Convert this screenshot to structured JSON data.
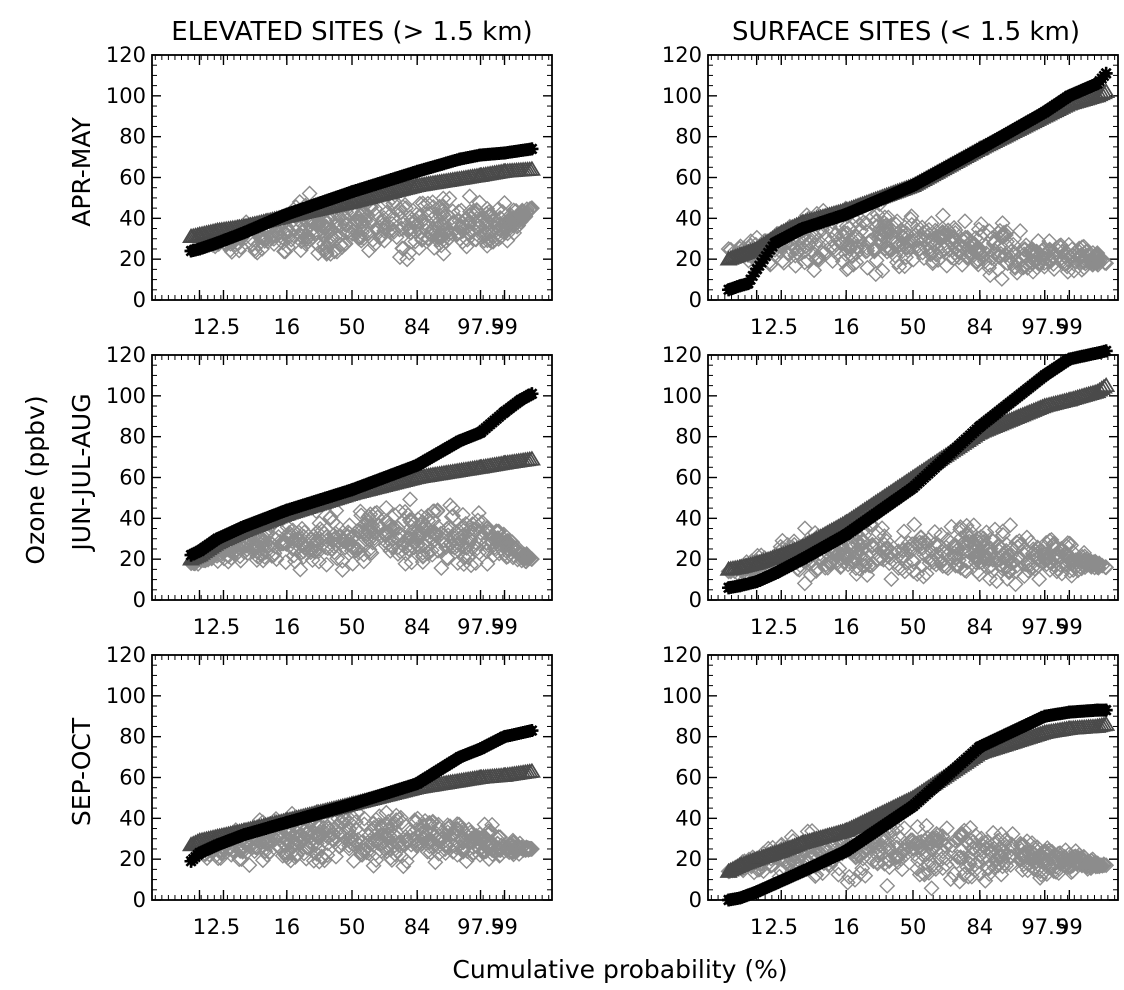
{
  "figure": {
    "column_titles": [
      "ELEVATED SITES (> 1.5 km)",
      "SURFACE SITES (< 1.5 km)"
    ],
    "row_labels": [
      "APR-MAY",
      "JUN-JUL-AUG",
      "SEP-OCT"
    ],
    "ylabel": "Ozone (ppbv)",
    "xlabel": "Cumulative probability (%)",
    "x_tick_labels": [
      "1",
      "2.5",
      "16",
      "50",
      "84",
      "97.5",
      "99"
    ],
    "y_tick_labels": [
      "0",
      "20",
      "40",
      "60",
      "80",
      "100",
      "120"
    ]
  },
  "colors": {
    "asterisk": "#000000",
    "triangle": "#4a4a4a",
    "diamond": "#8c8c8c",
    "axis": "#000000"
  },
  "chart_data": [
    {
      "type": "scatter",
      "x_scale": "probability",
      "ylim": [
        0,
        120
      ],
      "x_ticks": [
        1,
        2.5,
        16,
        50,
        84,
        97.5,
        99
      ],
      "series": [
        {
          "marker": "asterisk",
          "x": [
            0.7,
            1,
            2,
            5,
            16,
            50,
            84,
            95,
            97.5,
            99,
            99.7
          ],
          "y": [
            24,
            25,
            28,
            33,
            42,
            53,
            63,
            69,
            71,
            72,
            74
          ]
        },
        {
          "marker": "triangle",
          "x": [
            0.7,
            1,
            2,
            5,
            16,
            50,
            84,
            97.5,
            99,
            99.7
          ],
          "y": [
            31,
            32,
            34,
            36,
            41,
            48,
            56,
            61,
            63,
            64
          ]
        },
        {
          "marker": "diamond",
          "x": [
            1,
            2.5,
            5,
            16,
            50,
            84,
            97.5,
            99,
            99.7
          ],
          "y_center": [
            28,
            30,
            32,
            34,
            36,
            37,
            36,
            35,
            45
          ],
          "y_spread": [
            3,
            5,
            7,
            10,
            12,
            12,
            10,
            8,
            0
          ]
        }
      ]
    },
    {
      "type": "scatter",
      "x_scale": "probability",
      "ylim": [
        0,
        120
      ],
      "x_ticks": [
        1,
        2.5,
        16,
        50,
        84,
        97.5,
        99
      ],
      "series": [
        {
          "marker": "asterisk",
          "x": [
            0.3,
            0.5,
            0.7,
            1,
            2,
            5,
            16,
            50,
            84,
            97.5,
            99,
            99.7,
            99.8
          ],
          "y": [
            5,
            7,
            8,
            15,
            28,
            35,
            42,
            56,
            74,
            92,
            100,
            106,
            111
          ]
        },
        {
          "marker": "triangle",
          "x": [
            0.3,
            0.5,
            1,
            2.5,
            5,
            16,
            50,
            84,
            97.5,
            99,
            99.7,
            99.8
          ],
          "y": [
            20,
            22,
            25,
            33,
            38,
            44,
            56,
            74,
            90,
            96,
            100,
            102
          ]
        },
        {
          "marker": "diamond",
          "x": [
            0.3,
            0.7,
            1,
            2.5,
            5,
            16,
            50,
            84,
            97.5,
            99,
            99.7,
            99.8
          ],
          "y_center": [
            25,
            22,
            24,
            26,
            28,
            29,
            29,
            25,
            22,
            21,
            19,
            18
          ],
          "y_spread": [
            0,
            4,
            6,
            8,
            10,
            12,
            12,
            10,
            8,
            6,
            3,
            0
          ]
        }
      ]
    },
    {
      "type": "scatter",
      "x_scale": "probability",
      "ylim": [
        0,
        120
      ],
      "x_ticks": [
        1,
        2.5,
        16,
        50,
        84,
        97.5,
        99
      ],
      "series": [
        {
          "marker": "asterisk",
          "x": [
            0.7,
            1,
            2,
            5,
            16,
            50,
            84,
            95,
            97.5,
            99,
            99.5,
            99.7
          ],
          "y": [
            22,
            24,
            30,
            36,
            44,
            54,
            66,
            78,
            82,
            92,
            98,
            101
          ]
        },
        {
          "marker": "triangle",
          "x": [
            0.7,
            1,
            2,
            5,
            16,
            50,
            84,
            97.5,
            99,
            99.7
          ],
          "y": [
            20,
            22,
            28,
            34,
            42,
            52,
            60,
            65,
            67,
            69
          ]
        },
        {
          "marker": "diamond",
          "x": [
            0.7,
            1,
            2.5,
            5,
            16,
            50,
            84,
            97.5,
            99,
            99.5,
            99.7
          ],
          "y_center": [
            18,
            20,
            24,
            26,
            28,
            30,
            32,
            30,
            28,
            22,
            20
          ],
          "y_spread": [
            0,
            2,
            4,
            7,
            9,
            11,
            11,
            9,
            6,
            3,
            0
          ]
        }
      ]
    },
    {
      "type": "scatter",
      "x_scale": "probability",
      "ylim": [
        0,
        120
      ],
      "x_ticks": [
        1,
        2.5,
        16,
        50,
        84,
        97.5,
        99
      ],
      "series": [
        {
          "marker": "asterisk",
          "x": [
            0.3,
            0.5,
            1,
            2,
            5,
            16,
            50,
            84,
            97.5,
            99,
            99.7,
            99.8
          ],
          "y": [
            6,
            7,
            9,
            13,
            20,
            32,
            55,
            85,
            110,
            118,
            121,
            122
          ]
        },
        {
          "marker": "triangle",
          "x": [
            0.3,
            0.5,
            1,
            2.5,
            5,
            16,
            50,
            84,
            97.5,
            99,
            99.7,
            99.8
          ],
          "y": [
            15,
            16,
            18,
            22,
            26,
            38,
            60,
            82,
            95,
            98,
            102,
            105
          ]
        },
        {
          "marker": "diamond",
          "x": [
            0.3,
            0.7,
            1,
            2.5,
            5,
            16,
            50,
            84,
            97.5,
            99,
            99.5,
            99.8
          ],
          "y_center": [
            14,
            16,
            18,
            20,
            22,
            24,
            25,
            23,
            21,
            20,
            18,
            16
          ],
          "y_spread": [
            0,
            3,
            5,
            7,
            9,
            11,
            12,
            10,
            8,
            6,
            3,
            0
          ]
        }
      ]
    },
    {
      "type": "scatter",
      "x_scale": "probability",
      "ylim": [
        0,
        120
      ],
      "x_ticks": [
        1,
        2.5,
        16,
        50,
        84,
        97.5,
        99
      ],
      "series": [
        {
          "marker": "asterisk",
          "x": [
            0.7,
            1,
            2,
            5,
            16,
            50,
            84,
            95,
            97.5,
            99,
            99.7
          ],
          "y": [
            19,
            23,
            27,
            32,
            38,
            47,
            57,
            70,
            74,
            80,
            83
          ]
        },
        {
          "marker": "triangle",
          "x": [
            0.7,
            1,
            2,
            5,
            16,
            50,
            84,
            97.5,
            99,
            99.7
          ],
          "y": [
            27,
            29,
            31,
            34,
            39,
            47,
            55,
            60,
            61,
            63
          ]
        },
        {
          "marker": "diamond",
          "x": [
            1,
            2.5,
            5,
            16,
            50,
            84,
            97.5,
            99,
            99.7
          ],
          "y_center": [
            24,
            26,
            28,
            30,
            31,
            31,
            29,
            26,
            25
          ],
          "y_spread": [
            3,
            5,
            7,
            9,
            10,
            10,
            8,
            5,
            0
          ]
        }
      ]
    },
    {
      "type": "scatter",
      "x_scale": "probability",
      "ylim": [
        0,
        120
      ],
      "x_ticks": [
        1,
        2.5,
        16,
        50,
        84,
        97.5,
        99
      ],
      "series": [
        {
          "marker": "asterisk",
          "x": [
            0.3,
            0.5,
            1,
            2,
            5,
            16,
            50,
            84,
            97.5,
            99,
            99.7,
            99.8
          ],
          "y": [
            0,
            1,
            4,
            8,
            14,
            24,
            46,
            75,
            90,
            92,
            93,
            93
          ]
        },
        {
          "marker": "triangle",
          "x": [
            0.3,
            0.5,
            1,
            2.5,
            5,
            16,
            50,
            84,
            97.5,
            99,
            99.7,
            99.8
          ],
          "y": [
            14,
            17,
            20,
            24,
            28,
            34,
            50,
            72,
            82,
            84,
            85,
            86
          ]
        },
        {
          "marker": "diamond",
          "x": [
            0.3,
            0.7,
            1,
            2.5,
            5,
            16,
            50,
            84,
            97.5,
            99,
            99.5,
            99.8
          ],
          "y_center": [
            14,
            17,
            19,
            21,
            22,
            24,
            25,
            22,
            20,
            19,
            18,
            17
          ],
          "y_spread": [
            0,
            3,
            5,
            7,
            9,
            11,
            12,
            10,
            7,
            5,
            3,
            0
          ]
        }
      ]
    }
  ]
}
